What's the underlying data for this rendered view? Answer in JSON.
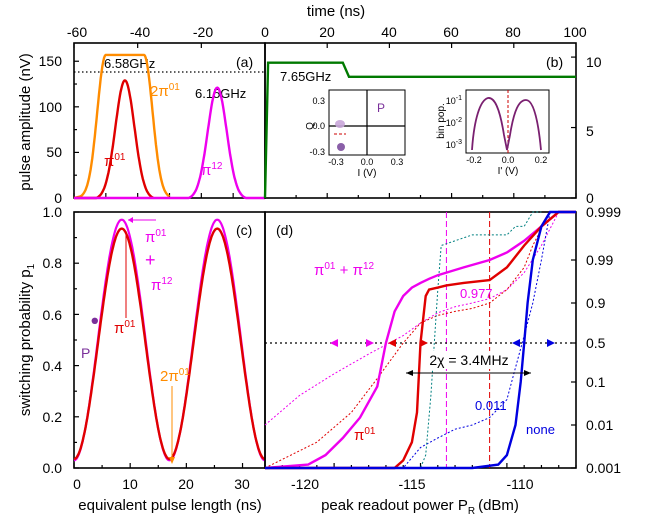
{
  "chart_data": [
    {
      "type": "line",
      "panel": "(a)",
      "xlabel": "time (ns)",
      "ylabel": "pulse  amplitude (nV)",
      "xlim": [
        -60,
        0
      ],
      "ylim": [
        0,
        170
      ],
      "xticks": [
        -60,
        -40,
        -20,
        0
      ],
      "top_ticks": [
        "-60",
        "-40",
        "-20",
        "0"
      ],
      "yticks": [
        0,
        50,
        100,
        150
      ],
      "annotations": [
        "6.58GHz",
        "6.15GHz"
      ],
      "reference_line": {
        "y": 157,
        "style": "dotted"
      },
      "series": [
        {
          "label": "2π01",
          "sup": "01",
          "base": "2π",
          "color": "#ff8c00",
          "shape": "flat-top",
          "x_start": -58,
          "x_end": -30,
          "peak": 157
        },
        {
          "label": "π01",
          "sup": "01",
          "base": "π",
          "color": "#e00000",
          "shape": "gaussian",
          "x_start": -53,
          "x_end": -35,
          "peak": 129
        },
        {
          "label": "π12",
          "sup": "12",
          "base": "π",
          "color": "#ee00ee",
          "shape": "gaussian",
          "x_start": -24,
          "x_end": -6,
          "peak": 121
        }
      ]
    },
    {
      "type": "line",
      "panel": "(b)",
      "xlabel": "time (ns)",
      "xlim": [
        0,
        100
      ],
      "ylim": [
        0,
        11
      ],
      "top_ticks": [
        "20",
        "40",
        "60",
        "80",
        "100"
      ],
      "yticks_right": [
        0,
        5,
        10
      ],
      "annotation": "7.65GHz",
      "series": [
        {
          "name": "readout pulse",
          "color": "#007a00",
          "x": [
            0,
            1,
            25,
            27,
            100
          ],
          "y": [
            0,
            9.6,
            9.6,
            8.6,
            8.6
          ]
        }
      ],
      "insets": [
        {
          "type": "scatter",
          "xlabel": "I (V)",
          "ylabel": "Q",
          "label": "P",
          "xticks": [
            "-0.3",
            "0.0",
            "0.3"
          ],
          "yticks": [
            "0.3",
            "0.0",
            "-0.3"
          ],
          "blobs": [
            {
              "x": -0.27,
              "y": 0.02
            },
            {
              "x": -0.25,
              "y": -0.22
            }
          ]
        },
        {
          "type": "line",
          "xlabel": "I' (V)",
          "ylabel": "bin pop.",
          "xticks": [
            "-0.2",
            "0.0",
            "0.2"
          ],
          "ylabels": [
            "10",
            "10",
            "10"
          ],
          "ysups": [
            "-1",
            "-2",
            "-3"
          ]
        }
      ]
    },
    {
      "type": "line",
      "panel": "(c)",
      "xlabel": "equivalent pulse length (ns)",
      "ylabel": "switching probability p",
      "ylabel_sub": "1",
      "xlim": [
        0,
        34
      ],
      "ylim": [
        0,
        1
      ],
      "xticks": [
        0,
        10,
        20,
        30
      ],
      "yticks": [
        0,
        0.2,
        0.4,
        0.6,
        0.8,
        1.0
      ],
      "point": {
        "label": "P",
        "x": 3.7,
        "y": 0.575
      },
      "annotations": {
        "pi01_top": "π",
        "pi01_top_sup": "01",
        "plus": "+",
        "pi12": "π",
        "pi12_sup": "12",
        "pi01_mid": "π",
        "pi01_mid_sup": "01",
        "twopi01": "2π",
        "twopi01_sup": "01"
      },
      "series": [
        {
          "name": "magenta",
          "color": "#ee00ee",
          "period": 17.0,
          "amplitude": 0.97,
          "offset": 0.03
        },
        {
          "name": "red",
          "color": "#e00000",
          "period": 17.0,
          "amplitude": 0.935,
          "offset": 0.035
        }
      ]
    },
    {
      "type": "line",
      "panel": "(d)",
      "xlabel": "peak readout power P",
      "xlabel_sub": "R",
      "xlabel_unit": "(dBm)",
      "xlim": [
        -124,
        -106
      ],
      "xticks": [
        -120,
        -115,
        -110
      ],
      "yticks_right": [
        "0.001",
        "0.01",
        "0.1",
        "0.5",
        "0.9",
        "0.99",
        "0.999"
      ],
      "annotations": {
        "magenta_label": "π",
        "magenta_sup": "01",
        "plus": " + ",
        "magenta_label2": "π",
        "magenta_sup2": "12",
        "red_label": "π",
        "red_sup": "01",
        "val_977": "0.977",
        "val_011": "0.011",
        "chi": "2χ = 3.4MHz",
        "none": "none"
      },
      "reference_lines": [
        {
          "x": -113.5,
          "color": "#ee00ee"
        },
        {
          "x": -111,
          "color": "#e00000"
        },
        {
          "y": 0.5,
          "color": "#000"
        }
      ],
      "series": [
        {
          "name": "π01+π12",
          "color": "#ee00ee",
          "x": [
            -124,
            -121.5,
            -120.5,
            -119.5,
            -118.5,
            -117.5,
            -117,
            -116.5,
            -116,
            -115.5,
            -115,
            -114.5,
            -114,
            -113.5,
            -112.5,
            -111,
            -110,
            -109,
            -108,
            -107,
            -106
          ],
          "p": [
            0.001,
            0.0012,
            0.002,
            0.005,
            0.015,
            0.08,
            0.5,
            0.85,
            0.93,
            0.955,
            0.965,
            0.972,
            0.977,
            0.98,
            0.985,
            0.99,
            0.993,
            0.996,
            0.998,
            0.999,
            0.999
          ]
        },
        {
          "name": "π01",
          "color": "#e00000",
          "x": [
            -124,
            -116.5,
            -116,
            -115.5,
            -115.2,
            -115,
            -114.7,
            -114.5,
            -114,
            -113.5,
            -112.5,
            -111,
            -110,
            -109,
            -108,
            -107,
            -106
          ],
          "p": [
            0.001,
            0.001,
            0.0015,
            0.004,
            0.02,
            0.5,
            0.93,
            0.95,
            0.955,
            0.96,
            0.965,
            0.97,
            0.985,
            0.995,
            0.998,
            0.999,
            0.999
          ]
        },
        {
          "name": "none",
          "color": "#0000e0",
          "x": [
            -124,
            -112,
            -110.5,
            -110,
            -109.5,
            -109.2,
            -109,
            -108.8,
            -108.5,
            -108,
            -107.5,
            -106
          ],
          "p": [
            0.001,
            0.001,
            0.0012,
            0.002,
            0.01,
            0.1,
            0.5,
            0.9,
            0.99,
            0.998,
            0.999,
            0.999
          ]
        }
      ]
    }
  ]
}
